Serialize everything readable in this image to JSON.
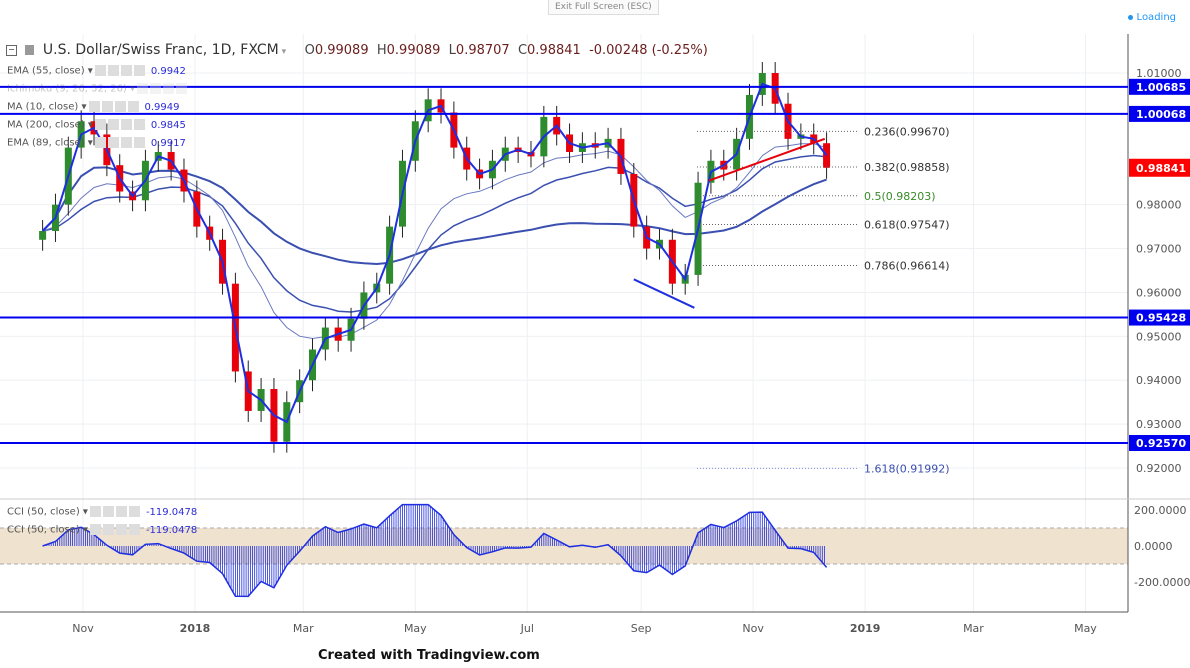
{
  "topbar": {
    "exit_fullscreen": "Exit Full Screen (ESC)",
    "loading": "Loading"
  },
  "symbol": {
    "title": "U.S. Dollar/Swiss Franc, 1D, FXCM",
    "open_label": "O",
    "open": "0.99089",
    "high_label": "H",
    "high": "0.99089",
    "low_label": "L",
    "low": "0.98707",
    "close_label": "C",
    "close": "0.98841",
    "change": "-0.00248 (-0.25%)"
  },
  "legend": [
    {
      "label": "EMA (55, close)",
      "value": "0.9942"
    },
    {
      "label": "Ichimoku (9, 26, 52, 26)",
      "value": ""
    },
    {
      "label": "MA (10, close)",
      "value": "0.9949"
    },
    {
      "label": "MA (200, close)",
      "value": "0.9845"
    },
    {
      "label": "EMA (89, close)",
      "value": "0.9917"
    }
  ],
  "cci_legend": [
    {
      "label": "CCI (50, close)",
      "value": "-119.0478"
    },
    {
      "label": "CCI (50, close)",
      "value": "-119.0478"
    }
  ],
  "footer": "Created with Tradingview.com",
  "colors": {
    "up": "#2e8b2e",
    "down": "#e8000b",
    "ma": "#1f2fe0",
    "level": "#0000ee",
    "last": "#ff0000",
    "cci_band": "#efe3cf"
  },
  "chart_data": {
    "type": "candlestick",
    "title": "U.S. Dollar/Swiss Franc, 1D, FXCM",
    "ylim": [
      0.916,
      1.014
    ],
    "y_ticks": [
      "1.01000",
      "0.98000",
      "0.97000",
      "0.96000",
      "0.95000",
      "0.94000",
      "0.93000",
      "0.92000"
    ],
    "x_ticks": [
      {
        "label": "Nov",
        "date": "2017-11-01"
      },
      {
        "label": "2018",
        "date": "2018-01-01"
      },
      {
        "label": "Mar",
        "date": "2018-03-01"
      },
      {
        "label": "May",
        "date": "2018-05-01"
      },
      {
        "label": "Jul",
        "date": "2018-07-01"
      },
      {
        "label": "Sep",
        "date": "2018-09-01"
      },
      {
        "label": "Nov",
        "date": "2018-11-01"
      },
      {
        "label": "2019",
        "date": "2019-01-01"
      },
      {
        "label": "Mar",
        "date": "2019-03-01"
      },
      {
        "label": "May",
        "date": "2019-05-01"
      }
    ],
    "grid": true,
    "closes": [
      [
        "2017-10-10",
        0.974
      ],
      [
        "2017-10-17",
        0.98
      ],
      [
        "2017-10-24",
        0.993
      ],
      [
        "2017-10-31",
        0.999
      ],
      [
        "2017-11-07",
        0.996
      ],
      [
        "2017-11-14",
        0.989
      ],
      [
        "2017-11-21",
        0.983
      ],
      [
        "2017-11-28",
        0.981
      ],
      [
        "2017-12-05",
        0.99
      ],
      [
        "2017-12-12",
        0.992
      ],
      [
        "2017-12-19",
        0.988
      ],
      [
        "2017-12-26",
        0.983
      ],
      [
        "2018-01-02",
        0.975
      ],
      [
        "2018-01-09",
        0.972
      ],
      [
        "2018-01-16",
        0.962
      ],
      [
        "2018-01-23",
        0.942
      ],
      [
        "2018-01-30",
        0.933
      ],
      [
        "2018-02-06",
        0.938
      ],
      [
        "2018-02-13",
        0.926
      ],
      [
        "2018-02-20",
        0.935
      ],
      [
        "2018-02-27",
        0.94
      ],
      [
        "2018-03-06",
        0.947
      ],
      [
        "2018-03-13",
        0.952
      ],
      [
        "2018-03-20",
        0.949
      ],
      [
        "2018-03-27",
        0.954
      ],
      [
        "2018-04-03",
        0.96
      ],
      [
        "2018-04-10",
        0.962
      ],
      [
        "2018-04-17",
        0.975
      ],
      [
        "2018-04-24",
        0.99
      ],
      [
        "2018-05-01",
        0.999
      ],
      [
        "2018-05-08",
        1.004
      ],
      [
        "2018-05-15",
        1.001
      ],
      [
        "2018-05-22",
        0.993
      ],
      [
        "2018-05-29",
        0.988
      ],
      [
        "2018-06-05",
        0.986
      ],
      [
        "2018-06-12",
        0.99
      ],
      [
        "2018-06-19",
        0.993
      ],
      [
        "2018-06-26",
        0.992
      ],
      [
        "2018-07-03",
        0.991
      ],
      [
        "2018-07-10",
        1.0
      ],
      [
        "2018-07-17",
        0.996
      ],
      [
        "2018-07-24",
        0.992
      ],
      [
        "2018-07-31",
        0.994
      ],
      [
        "2018-08-07",
        0.993
      ],
      [
        "2018-08-14",
        0.995
      ],
      [
        "2018-08-21",
        0.987
      ],
      [
        "2018-08-28",
        0.975
      ],
      [
        "2018-09-04",
        0.97
      ],
      [
        "2018-09-11",
        0.972
      ],
      [
        "2018-09-18",
        0.962
      ],
      [
        "2018-09-25",
        0.964
      ],
      [
        "2018-10-02",
        0.985
      ],
      [
        "2018-10-09",
        0.99
      ],
      [
        "2018-10-16",
        0.988
      ],
      [
        "2018-10-23",
        0.995
      ],
      [
        "2018-10-30",
        1.005
      ],
      [
        "2018-11-06",
        1.01
      ],
      [
        "2018-11-13",
        1.003
      ],
      [
        "2018-11-20",
        0.995
      ],
      [
        "2018-11-27",
        0.996
      ],
      [
        "2018-12-04",
        0.994
      ],
      [
        "2018-12-11",
        0.9884
      ]
    ],
    "horizontal_levels": [
      "1.00685",
      "1.00068",
      "0.95428",
      "0.92570"
    ],
    "last_price": "0.98841",
    "fibonacci": [
      {
        "label": "0.236(0.99670)",
        "ratio": 0.236,
        "price": 0.9967
      },
      {
        "label": "0.382(0.98858)",
        "ratio": 0.382,
        "price": 0.98858
      },
      {
        "label": "0.5(0.98203)",
        "ratio": 0.5,
        "price": 0.98203
      },
      {
        "label": "0.618(0.97547)",
        "ratio": 0.618,
        "price": 0.97547
      },
      {
        "label": "0.786(0.96614)",
        "ratio": 0.786,
        "price": 0.96614
      },
      {
        "label": "1.618(0.91992)",
        "ratio": 1.618,
        "price": 0.91992
      }
    ],
    "trendlines": [
      {
        "color": "#e8000b",
        "from": [
          "2018-10-08",
          0.9855
        ],
        "to": [
          "2018-12-10",
          0.995
        ]
      },
      {
        "color": "#1f2fe0",
        "from": [
          "2018-08-28",
          0.963
        ],
        "to": [
          "2018-09-30",
          0.9565
        ]
      }
    ],
    "cci": {
      "ylim": [
        -300,
        250
      ],
      "y_ticks": [
        "200.0000",
        "0.0000",
        "-200.0000"
      ],
      "band": [
        100,
        -100
      ],
      "last": "-119.0478"
    }
  }
}
